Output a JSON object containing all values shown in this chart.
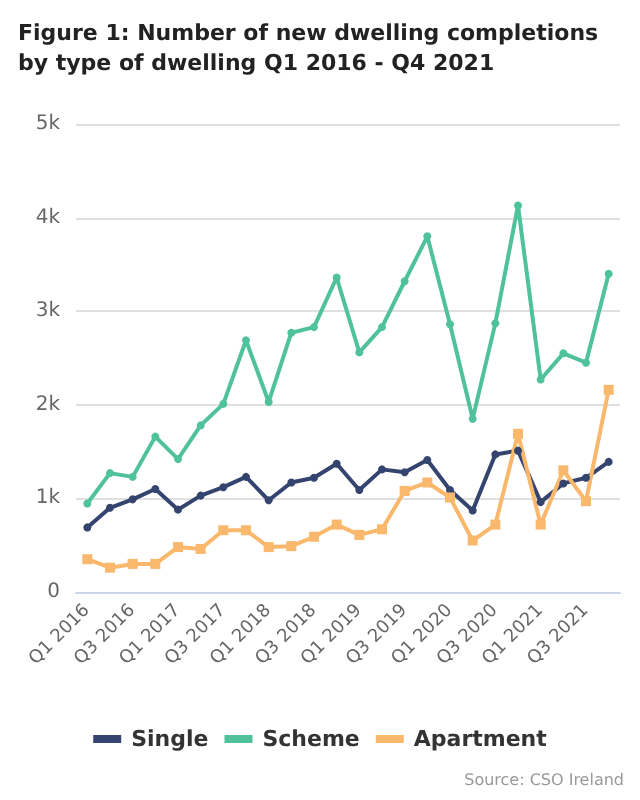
{
  "chart_data": {
    "type": "line",
    "title": "Figure 1: Number of new dwelling completions by type of dwelling Q1 2016 - Q4 2021",
    "categories": [
      "Q1 2016",
      null,
      "Q3 2016",
      null,
      "Q1 2017",
      null,
      "Q3 2017",
      null,
      "Q1 2018",
      null,
      "Q3 2018",
      null,
      "Q1 2019",
      null,
      "Q3 2019",
      null,
      "Q1 2020",
      null,
      "Q3 2020",
      null,
      "Q1 2021",
      null,
      "Q3 2021",
      null
    ],
    "series": [
      {
        "name": "Single",
        "color": "#34446f",
        "marker": "circle",
        "values": [
          690,
          900,
          990,
          1100,
          880,
          1030,
          1120,
          1230,
          980,
          1170,
          1220,
          1370,
          1090,
          1310,
          1280,
          1410,
          1090,
          870,
          1470,
          1510,
          960,
          1160,
          1220,
          1390
        ]
      },
      {
        "name": "Scheme",
        "color": "#4fc29c",
        "marker": "circle",
        "values": [
          945,
          1270,
          1230,
          1660,
          1420,
          1780,
          2010,
          2690,
          2030,
          2770,
          2830,
          3360,
          2560,
          2830,
          3320,
          3800,
          2860,
          1850,
          2870,
          4130,
          2270,
          2550,
          2450,
          3400
        ]
      },
      {
        "name": "Apartment",
        "color": "#f9b86c",
        "marker": "square",
        "values": [
          350,
          260,
          300,
          300,
          480,
          460,
          660,
          660,
          480,
          490,
          590,
          720,
          610,
          670,
          1080,
          1170,
          1010,
          550,
          720,
          1690,
          720,
          1300,
          970,
          2160
        ]
      }
    ],
    "ylim": [
      0,
      5000
    ],
    "yticks": [
      0,
      {
        "value": 1000,
        "label": "1k"
      },
      {
        "value": 2000,
        "label": "2k"
      },
      {
        "value": 3000,
        "label": "3k"
      },
      {
        "value": 4000,
        "label": "4k"
      },
      {
        "value": 5000,
        "label": "5k"
      }
    ],
    "grid": "y",
    "legend": "bottom",
    "line_style": "solid",
    "annotations": [
      "Source: CSO Ireland"
    ]
  }
}
